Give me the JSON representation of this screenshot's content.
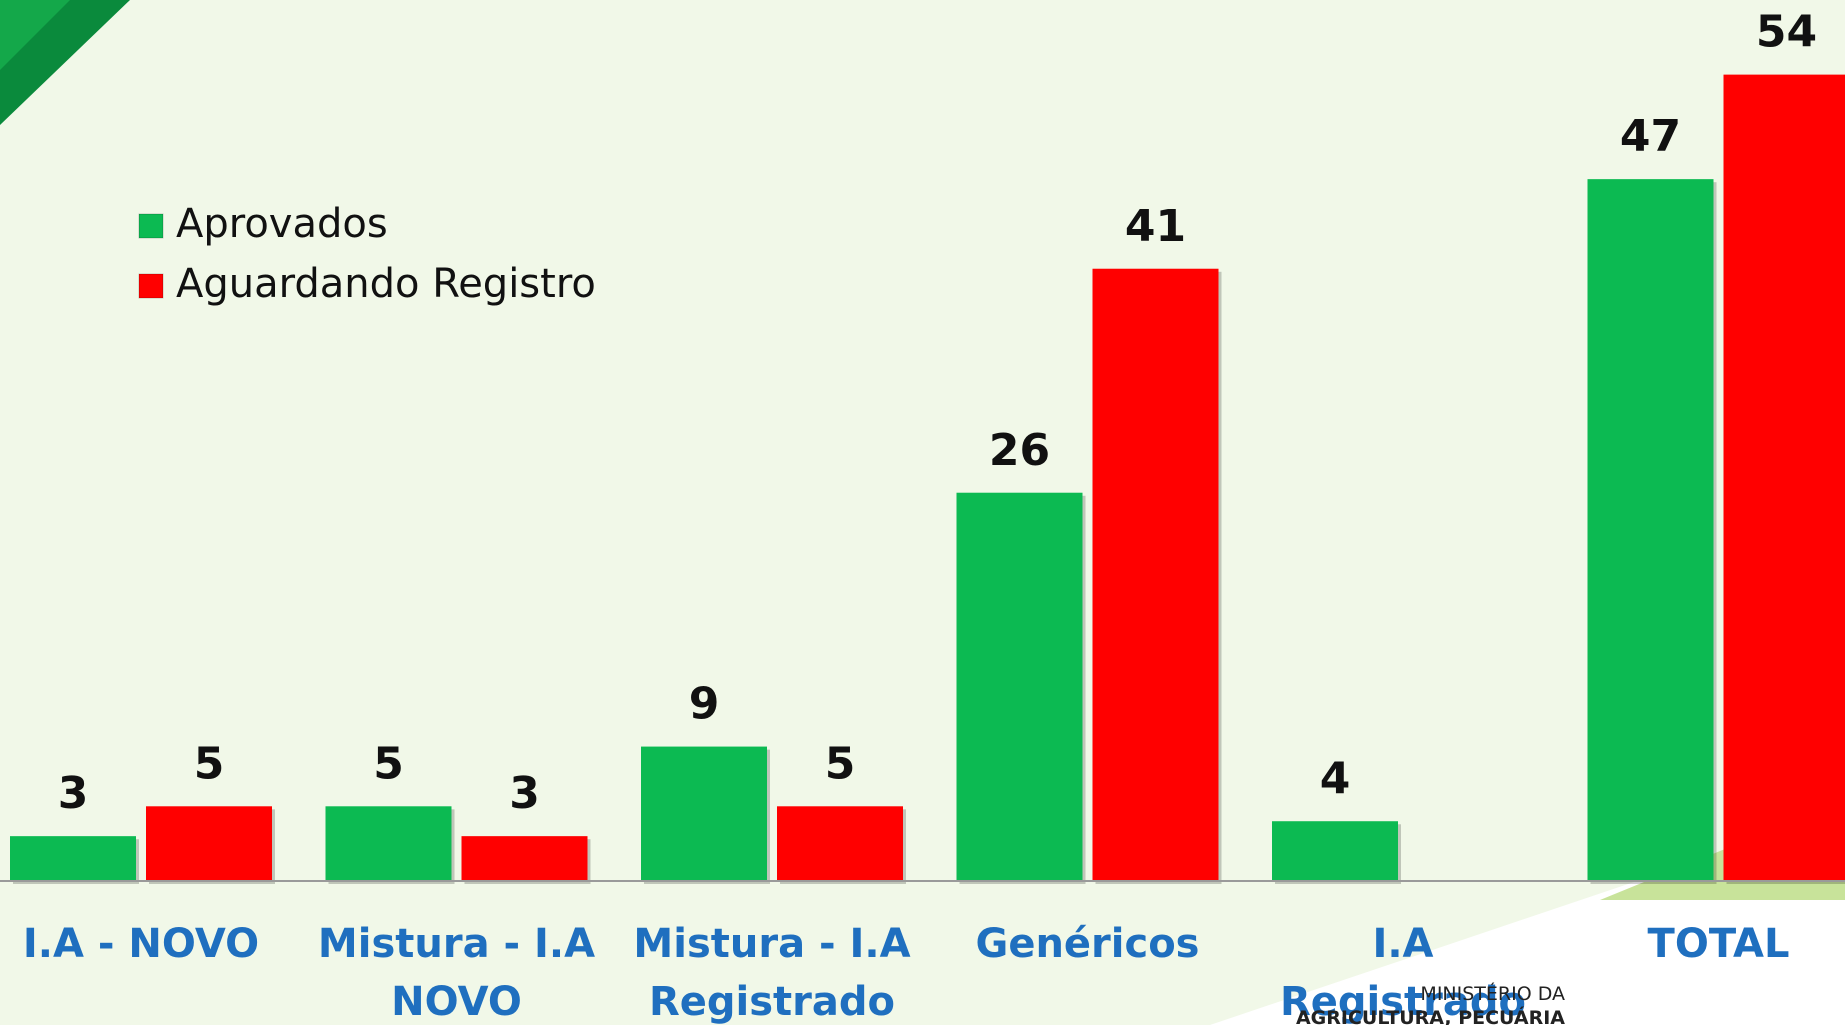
{
  "chart_data": {
    "type": "bar",
    "categories": [
      "I.A - NOVO",
      "Mistura - I.A NOVO",
      "Mistura - I.A Registrado",
      "Genéricos",
      "I.A Registrado",
      "TOTAL"
    ],
    "series": [
      {
        "name": "Aprovados",
        "color": "#0cba52",
        "values": [
          3,
          5,
          9,
          26,
          4,
          47
        ]
      },
      {
        "name": "Aguardando Registro",
        "color": "#ff0000",
        "values": [
          5,
          3,
          5,
          41,
          null,
          54
        ]
      }
    ],
    "ylim": [
      0,
      59
    ],
    "legend": "upper left"
  },
  "footer": {
    "lines": [
      "MINISTÉRIO DA",
      "AGRICULTURA, PECUÁRIA"
    ]
  }
}
